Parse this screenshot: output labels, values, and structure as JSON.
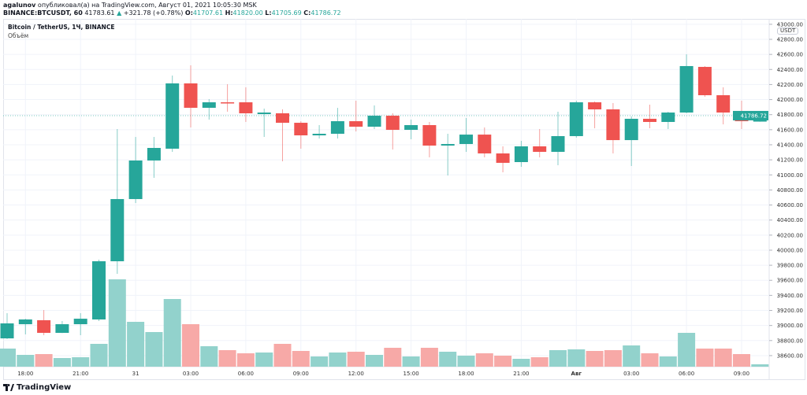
{
  "header": {
    "author": "agalunov",
    "published": "опубликовал(а) на TradingView.com, Август 01, 2021 10:05:30 MSK",
    "symbol": "BINANCE:BTCUSDT, 60",
    "last": "41783.61",
    "change_arrow": "▲",
    "change": "+321.78 (+0.78%)",
    "o_label": "O:",
    "o": "41707.61",
    "h_label": "H:",
    "h": "41820.00",
    "l_label": "L:",
    "l": "41705.69",
    "c_label": "C:",
    "c": "41786.72"
  },
  "legend": {
    "title": "Bitcoin / TetherUS, 1Ч, BINANCE",
    "volume": "Объём"
  },
  "currency": "USDT",
  "logo": "TradingView",
  "colors": {
    "up": "#26a69a",
    "down": "#ef5350",
    "up_vol": "#92d2cc",
    "down_vol": "#f7a9a7",
    "grid": "#f0f3fa"
  },
  "chart_data": {
    "type": "candlestick",
    "title": "Bitcoin / TetherUS, 1Ч, BINANCE",
    "interval": "1h",
    "ylim": [
      38600,
      43000
    ],
    "y_ticks": [
      43000,
      42800,
      42600,
      42400,
      42200,
      42000,
      41800,
      41600,
      41400,
      41200,
      41000,
      40800,
      40600,
      40400,
      40200,
      40000,
      39800,
      39600,
      39400,
      39200,
      39000,
      38800,
      38600
    ],
    "last_price_label": "41786.72",
    "x_ticks": [
      {
        "index": 1,
        "label": "18:00"
      },
      {
        "index": 4,
        "label": "21:00"
      },
      {
        "index": 7,
        "label": "31"
      },
      {
        "index": 10,
        "label": "03:00"
      },
      {
        "index": 13,
        "label": "06:00"
      },
      {
        "index": 16,
        "label": "09:00"
      },
      {
        "index": 19,
        "label": "12:00"
      },
      {
        "index": 22,
        "label": "15:00"
      },
      {
        "index": 25,
        "label": "18:00"
      },
      {
        "index": 28,
        "label": "21:00"
      },
      {
        "index": 31,
        "label": "Авг"
      },
      {
        "index": 34,
        "label": "03:00"
      },
      {
        "index": 37,
        "label": "06:00"
      },
      {
        "index": 40,
        "label": "09:00"
      }
    ],
    "volume_unit": "relative",
    "candles_ohlcv": [
      [
        38829,
        39164,
        38820,
        39028,
        23
      ],
      [
        39017,
        39090,
        38882,
        39080,
        15
      ],
      [
        39070,
        39205,
        38871,
        38902,
        16
      ],
      [
        38902,
        39059,
        38900,
        39017,
        11
      ],
      [
        39017,
        39164,
        38871,
        39090,
        12
      ],
      [
        39080,
        39874,
        39059,
        39853,
        29
      ],
      [
        39853,
        41609,
        39686,
        40679,
        111
      ],
      [
        40679,
        41504,
        40626,
        41191,
        57
      ],
      [
        41191,
        41504,
        40961,
        41358,
        44
      ],
      [
        41348,
        42319,
        41306,
        42215,
        86
      ],
      [
        42215,
        42455,
        41630,
        41891,
        54
      ],
      [
        41891,
        42006,
        41734,
        41964,
        26
      ],
      [
        41964,
        42204,
        41839,
        41954,
        21
      ],
      [
        41964,
        42163,
        41703,
        41818,
        17
      ],
      [
        41807,
        41880,
        41504,
        41828,
        18
      ],
      [
        41818,
        41870,
        41180,
        41692,
        29
      ],
      [
        41692,
        41713,
        41348,
        41525,
        20
      ],
      [
        41525,
        41661,
        41483,
        41546,
        13
      ],
      [
        41546,
        41890,
        41483,
        41713,
        18
      ],
      [
        41713,
        41985,
        41577,
        41640,
        19
      ],
      [
        41640,
        41922,
        41609,
        41786,
        15
      ],
      [
        41786,
        41818,
        41337,
        41598,
        24
      ],
      [
        41598,
        41734,
        41473,
        41661,
        13
      ],
      [
        41661,
        41703,
        41233,
        41389,
        24
      ],
      [
        41389,
        41546,
        40992,
        41410,
        19
      ],
      [
        41410,
        41755,
        41306,
        41535,
        14
      ],
      [
        41535,
        41630,
        41233,
        41285,
        17
      ],
      [
        41285,
        41379,
        41034,
        41160,
        14
      ],
      [
        41170,
        41452,
        41107,
        41379,
        10
      ],
      [
        41379,
        41609,
        41233,
        41306,
        12
      ],
      [
        41306,
        41839,
        41128,
        41515,
        21
      ],
      [
        41515,
        41985,
        41494,
        41964,
        22
      ],
      [
        41964,
        41975,
        41619,
        41870,
        20
      ],
      [
        41870,
        41954,
        41285,
        41462,
        21
      ],
      [
        41462,
        41776,
        41118,
        41745,
        27
      ],
      [
        41745,
        41933,
        41619,
        41703,
        17
      ],
      [
        41703,
        41839,
        41609,
        41828,
        13
      ],
      [
        41828,
        42601,
        41818,
        42445,
        43
      ],
      [
        42434,
        42445,
        42037,
        42058,
        23
      ],
      [
        42058,
        42163,
        41671,
        41828,
        23
      ],
      [
        41828,
        41985,
        41609,
        41713,
        16
      ],
      [
        41707.61,
        41820,
        41705.69,
        41786.72,
        3
      ]
    ]
  }
}
